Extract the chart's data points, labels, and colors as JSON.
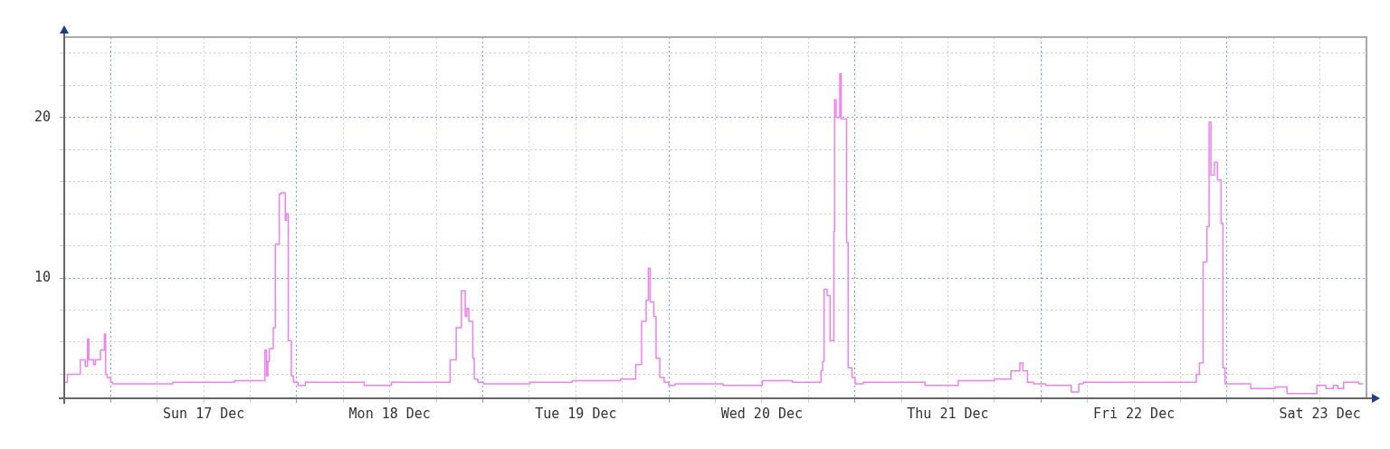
{
  "chart_data": {
    "type": "step",
    "grid": true,
    "legend": false,
    "marker": "none",
    "line_style": "solid",
    "xlim": [
      "--12-16T18:00",
      "--12-23T18:00"
    ],
    "xticks": [
      {
        "value": "--12-17T00:00",
        "label": null
      },
      {
        "value": "--12-17T06:00",
        "label": null
      },
      {
        "value": "--12-17T12:00",
        "label": "Sun 17 Dec"
      },
      {
        "value": "--12-17T18:00",
        "label": null
      },
      {
        "value": "--12-18T00:00",
        "label": null
      },
      {
        "value": "--12-18T06:00",
        "label": null
      },
      {
        "value": "--12-18T12:00",
        "label": "Mon 18 Dec"
      },
      {
        "value": "--12-18T18:00",
        "label": null
      },
      {
        "value": "--12-19T00:00",
        "label": null
      },
      {
        "value": "--12-19T06:00",
        "label": null
      },
      {
        "value": "--12-19T12:00",
        "label": "Tue 19 Dec"
      },
      {
        "value": "--12-19T18:00",
        "label": null
      },
      {
        "value": "--12-20T00:00",
        "label": null
      },
      {
        "value": "--12-20T06:00",
        "label": null
      },
      {
        "value": "--12-20T12:00",
        "label": "Wed 20 Dec"
      },
      {
        "value": "--12-20T18:00",
        "label": null
      },
      {
        "value": "--12-21T00:00",
        "label": null
      },
      {
        "value": "--12-21T06:00",
        "label": null
      },
      {
        "value": "--12-21T12:00",
        "label": "Thu 21 Dec"
      },
      {
        "value": "--12-21T18:00",
        "label": null
      },
      {
        "value": "--12-22T00:00",
        "label": null
      },
      {
        "value": "--12-22T06:00",
        "label": null
      },
      {
        "value": "--12-22T12:00",
        "label": "Fri 22 Dec"
      },
      {
        "value": "--12-22T18:00",
        "label": null
      },
      {
        "value": "--12-23T00:00",
        "label": null
      },
      {
        "value": "--12-23T06:00",
        "label": null
      },
      {
        "value": "--12-23T12:00",
        "label": "Sat 23 Dec"
      }
    ],
    "ylim": [
      2.5,
      25
    ],
    "yticks": [
      {
        "value": 4,
        "label": null
      },
      {
        "value": 6,
        "label": null
      },
      {
        "value": 8,
        "label": null
      },
      10,
      {
        "value": 12,
        "label": null
      },
      {
        "value": 14,
        "label": null
      },
      {
        "value": 16,
        "label": null
      },
      {
        "value": 18,
        "label": null
      },
      20,
      {
        "value": 22,
        "label": null
      },
      {
        "value": 24,
        "label": null
      }
    ],
    "series": [
      {
        "color": "#f080f0",
        "x": [
          "--12-16T18:00",
          "--12-16T18:24",
          "--12-16T20:04",
          "--12-16T20:42",
          "--12-16T21:00",
          "--12-16T21:10",
          "--12-16T21:47",
          "--12-16T22:01",
          "--12-16T22:41",
          "--12-16T23:11",
          "--12-16T23:20",
          "--12-16T23:32",
          "--12-16T23:58",
          "--12-17T00:14",
          "--12-17T00:49",
          "--12-17T08:00",
          "--12-17T10:00",
          "--12-17T16:00",
          "--12-17T19:53",
          "--12-17T20:06",
          "--12-17T20:16",
          "--12-17T20:28",
          "--12-17T20:58",
          "--12-17T21:14",
          "--12-17T21:44",
          "--12-17T21:56",
          "--12-17T22:31",
          "--12-17T22:40",
          "--12-17T22:54",
          "--12-17T23:18",
          "--12-17T23:34",
          "--12-18T00:09",
          "--12-18T01:06",
          "--12-18T08:42",
          "--12-18T12:12",
          "--12-18T13:46",
          "--12-18T19:47",
          "--12-18T20:34",
          "--12-18T21:14",
          "--12-18T21:44",
          "--12-18T21:56",
          "--12-18T22:12",
          "--12-18T22:42",
          "--12-18T22:54",
          "--12-18T23:22",
          "--12-19T00:04",
          "--12-19T01:03",
          "--12-19T06:06",
          "--12-19T09:13",
          "--12-19T11:32",
          "--12-19T17:46",
          "--12-19T19:43",
          "--12-19T20:29",
          "--12-19T21:04",
          "--12-19T21:21",
          "--12-19T21:35",
          "--12-19T22:03",
          "--12-19T22:21",
          "--12-19T22:50",
          "--12-19T23:24",
          "--12-20T00:00",
          "--12-20T00:47",
          "--12-20T07:00",
          "--12-20T12:03",
          "--12-20T15:56",
          "--12-20T17:29",
          "--12-20T19:38",
          "--12-20T19:50",
          "--12-20T20:01",
          "--12-20T20:25",
          "--12-20T20:48",
          "--12-20T20:55",
          "--12-20T21:18",
          "--12-20T21:23",
          "--12-20T21:35",
          "--12-20T22:03",
          "--12-20T22:14",
          "--12-20T22:56",
          "--12-20T23:08",
          "--12-20T23:38",
          "--12-21T00:02",
          "--12-21T01:05",
          "--12-21T09:03",
          "--12-21T13:20",
          "--12-21T18:00",
          "--12-21T20:08",
          "--12-21T21:17",
          "--12-21T21:41",
          "--12-21T22:16",
          "--12-21T23:03",
          "--12-22T00:37",
          "--12-22T03:55",
          "--12-22T04:53",
          "--12-22T05:28",
          "--12-22T06:26",
          "--12-22T13:50",
          "--12-22T20:03",
          "--12-22T20:27",
          "--12-22T20:56",
          "--12-22T21:25",
          "--12-22T21:42",
          "--12-22T21:56",
          "--12-22T22:23",
          "--12-22T22:47",
          "--12-22T23:15",
          "--12-22T23:29",
          "--12-22T23:46",
          "--12-23T00:09",
          "--12-23T03:04",
          "--12-23T03:17",
          "--12-23T06:13",
          "--12-23T07:45",
          "--12-23T11:37",
          "--12-23T12:47",
          "--12-23T13:44",
          "--12-23T14:18",
          "--12-23T15:03",
          "--12-23T17:01",
          "--12-23T17:35"
        ],
        "values": [
          3.4,
          3.5,
          4.0,
          4.9,
          4.5,
          6.2,
          4.9,
          4.6,
          4.9,
          5.5,
          6.5,
          4.0,
          3.8,
          3.5,
          3.4,
          3.4,
          3.5,
          3.5,
          3.6,
          5.5,
          3.9,
          4.8,
          5.6,
          6.9,
          12.1,
          15.2,
          15.3,
          13.6,
          14.0,
          6.1,
          3.9,
          3.5,
          3.3,
          3.5,
          3.3,
          3.5,
          3.5,
          4.9,
          6.9,
          9.2,
          7.6,
          8.1,
          7.3,
          5.0,
          3.7,
          3.5,
          3.4,
          3.4,
          3.5,
          3.5,
          3.6,
          3.7,
          4.6,
          7.3,
          8.6,
          10.6,
          8.5,
          7.6,
          5.0,
          3.8,
          3.5,
          3.3,
          3.4,
          3.3,
          3.6,
          3.5,
          3.5,
          4.2,
          4.8,
          9.3,
          8.9,
          6.1,
          6.1,
          12.9,
          21.1,
          20.0,
          22.7,
          19.9,
          12.2,
          4.4,
          3.8,
          3.4,
          3.5,
          3.3,
          3.6,
          3.7,
          4.2,
          4.7,
          4.2,
          3.5,
          3.4,
          3.3,
          2.9,
          3.4,
          3.5,
          3.5,
          3.5,
          4.0,
          4.7,
          11.0,
          13.2,
          19.7,
          16.4,
          17.2,
          16.1,
          13.4,
          4.4,
          3.4,
          3.4,
          3.1,
          3.1,
          3.2,
          2.8,
          3.3,
          3.1,
          3.3,
          3.1,
          3.5,
          3.4
        ]
      }
    ]
  }
}
